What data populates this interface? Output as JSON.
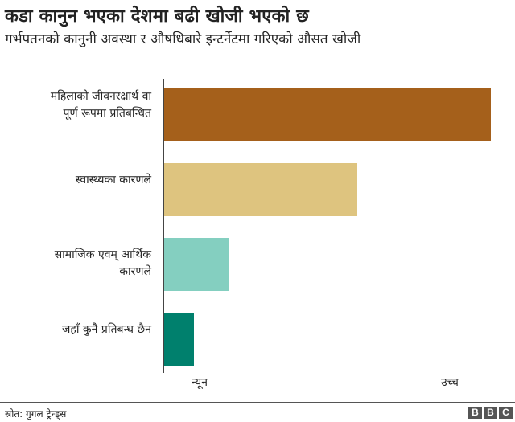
{
  "header": {
    "title": "कडा कानुन भएका देशमा बढी खोजी भएको छ",
    "subtitle": "गर्भपतनको कानुनी अवस्था र औषधिबारे इन्टर्नेटमा गरिएको औसत खोजी"
  },
  "chart_data": {
    "type": "bar",
    "orientation": "horizontal",
    "title": "कडा कानुन भएका देशमा बढी खोजी भएको छ",
    "subtitle": "गर्भपतनको कानुनी अवस्था र औषधिबारे इन्टर्नेटमा गरिएको औसत खोजी",
    "categories": [
      "महिलाको जीवनरक्षार्थ वा पूर्ण रूपमा प्रतिबन्धित",
      "स्वास्थ्यका कारणले",
      "सामाजिक एवम् आर्थिक कारणले",
      "जहाँ कुनै प्रतिबन्ध छैन"
    ],
    "values": [
      100,
      59,
      20,
      9
    ],
    "colors": [
      "#a5601b",
      "#dec47f",
      "#84cfc0",
      "#00806d"
    ],
    "xlabel": "",
    "ylabel": "",
    "x_tick_labels": [
      "न्यून",
      "उच्च"
    ],
    "xlim": [
      0,
      100
    ],
    "grid": false,
    "legend": "none"
  },
  "labels": {
    "cat0_line1": "महिलाको जीवनरक्षार्थ वा",
    "cat0_line2": "पूर्ण रूपमा प्रतिबन्धित",
    "cat1": "स्वास्थ्यका कारणले",
    "cat2_line1": "सामाजिक एवम् आर्थिक",
    "cat2_line2": "कारणले",
    "cat3": "जहाँ कुनै प्रतिबन्ध छैन"
  },
  "axis": {
    "low": "न्यून",
    "high": "उच्च"
  },
  "footer": {
    "source": "स्रोत: गुगल ट्रेन्ड्स",
    "logo": [
      "B",
      "B",
      "C"
    ]
  }
}
